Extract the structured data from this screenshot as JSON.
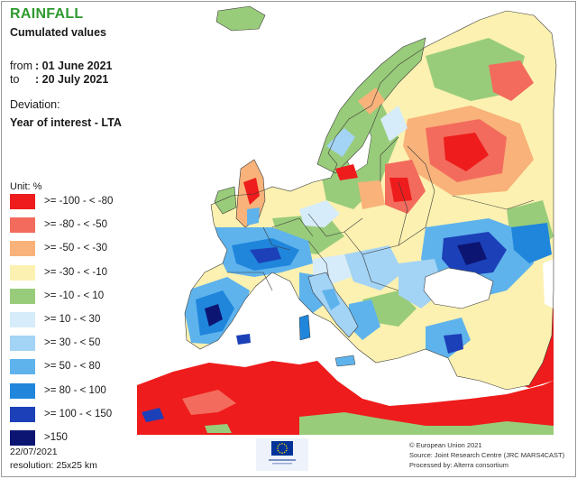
{
  "title": "RAINFALL",
  "subtitle": "Cumulated values",
  "period": {
    "from_label": "from",
    "from_value": ": 01 June 2021",
    "to_label": "to",
    "to_value": ": 20 July 2021"
  },
  "deviation_label": "Deviation:",
  "deviation_value": "Year of interest - LTA",
  "unit_label": "Unit:  %",
  "legend": [
    {
      "label": ">= -100 - < -80",
      "color": "#ee1c1c"
    },
    {
      "label": ">= -80 - < -50",
      "color": "#f36b5d"
    },
    {
      "label": ">= -50 - < -30",
      "color": "#f8b27a"
    },
    {
      "label": ">= -30 - < -10",
      "color": "#fcf1b0"
    },
    {
      "label": ">= -10 - < 10",
      "color": "#99cc7a"
    },
    {
      "label": ">= 10 - < 30",
      "color": "#d6ecfa"
    },
    {
      "label": ">= 30 - < 50",
      "color": "#a3d3f5"
    },
    {
      "label": ">= 50 - < 80",
      "color": "#5fb3ec"
    },
    {
      "label": ">= 80 - < 100",
      "color": "#1f86dc"
    },
    {
      "label": ">= 100 - < 150",
      "color": "#1c40b8"
    },
    {
      "label": ">150",
      "color": "#0d1573"
    }
  ],
  "footer": {
    "date": "22/07/2021",
    "resolution": "resolution:  25x25 km",
    "credit_eu": "© European Union 2021",
    "credit_source": "Source: Joint Research Centre (JRC MARS4CAST)",
    "credit_processed": "Processed by: Alterra consortium"
  },
  "colors": {
    "title": "#2e9a2e",
    "sea": "#ffffff",
    "border": "#3a3a3a",
    "nodata": "#ffffff",
    "eu_blue": "#003399",
    "eu_star": "#ffcc00"
  }
}
